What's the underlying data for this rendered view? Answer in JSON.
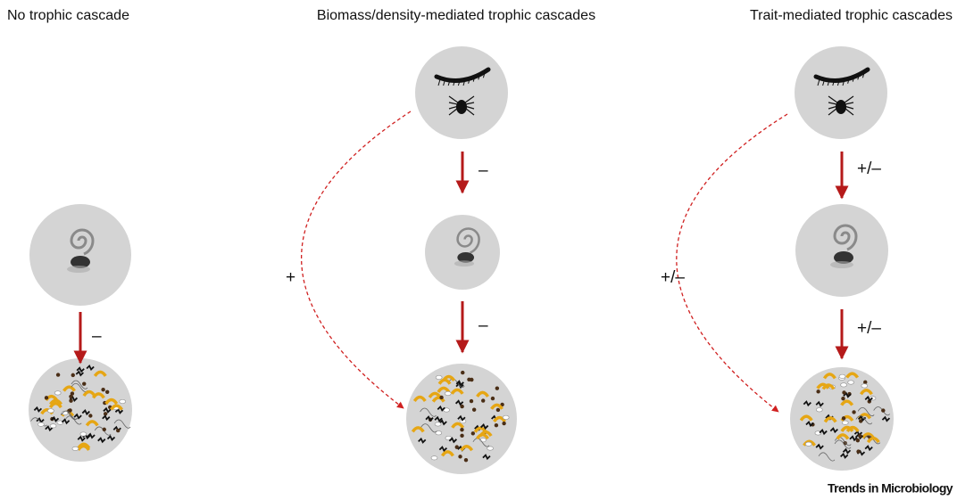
{
  "panels": [
    {
      "title": "No trophic cascade",
      "arrow_labels": [
        "–"
      ]
    },
    {
      "title": "Biomass/density-mediated trophic cascades",
      "arrow_labels": [
        "–",
        "–"
      ],
      "indirect_label": "+"
    },
    {
      "title": "Trait-mediated trophic cascades",
      "arrow_labels": [
        "+/–",
        "+/–"
      ],
      "indirect_label": "+/–"
    }
  ],
  "footer": "Trends in Microbiology"
}
